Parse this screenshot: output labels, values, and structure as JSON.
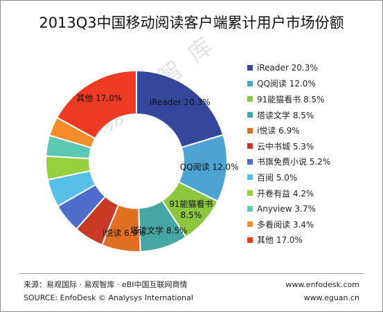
{
  "title": "2013Q3中国移动阅读客户端累计用户市场份额",
  "watermark": "易观智库",
  "chart_data": {
    "type": "pie",
    "donut": true,
    "title": "2013Q3中国移动阅读客户端累计用户市场份额",
    "legend_position": "right",
    "unit": "%",
    "categories": [
      "iReader",
      "QQ阅读",
      "91能猫看书",
      "塔读文学",
      "i悦读",
      "云中书城",
      "书旗免费小说",
      "百阅",
      "开卷有益",
      "Anyview",
      "多看阅读",
      "其他"
    ],
    "values": [
      20.3,
      12.0,
      8.5,
      8.5,
      6.9,
      5.3,
      5.2,
      5.0,
      4.2,
      3.7,
      3.4,
      17.0
    ],
    "colors": [
      "#34479d",
      "#4da3d1",
      "#8cc63f",
      "#45a6a2",
      "#e0701f",
      "#c83a26",
      "#4e6cc9",
      "#57c0e8",
      "#95d13f",
      "#5cc8b3",
      "#f48c2a",
      "#ec3b22"
    ],
    "legend_labels": [
      "iReader 20.3%",
      "QQ阅读 12.0%",
      "91能猫看书 8.5%",
      "塔读文学 8.5%",
      "i悦读 6.9%",
      "云中书城 5.3%",
      "书旗免费小说 5.2%",
      "百阅 5.0%",
      "开卷有益 4.2%",
      "Anyview 3.7%",
      "多看阅读 3.4%",
      "其他 17.0%"
    ],
    "slice_labels": [
      {
        "index": 0,
        "lines": [
          "iReader  20.3%"
        ]
      },
      {
        "index": 1,
        "lines": [
          "QQ阅读 12.0%"
        ]
      },
      {
        "index": 2,
        "lines": [
          "91能猫看书",
          "8.5%"
        ]
      },
      {
        "index": 3,
        "lines": [
          "塔读文学 8.5%"
        ]
      },
      {
        "index": 4,
        "lines": [
          "i悦读 6.9%"
        ]
      },
      {
        "index": 11,
        "lines": [
          "其他 17.0%"
        ]
      }
    ]
  },
  "footer": {
    "source_cn": "来源：易观国际 · 易观智库 · eBI中国互联网商情",
    "source_en": "SOURCE: EnfoDesk © Analysys International",
    "url1": "www.enfodesk.com",
    "url2": "www.eguan.cn"
  }
}
